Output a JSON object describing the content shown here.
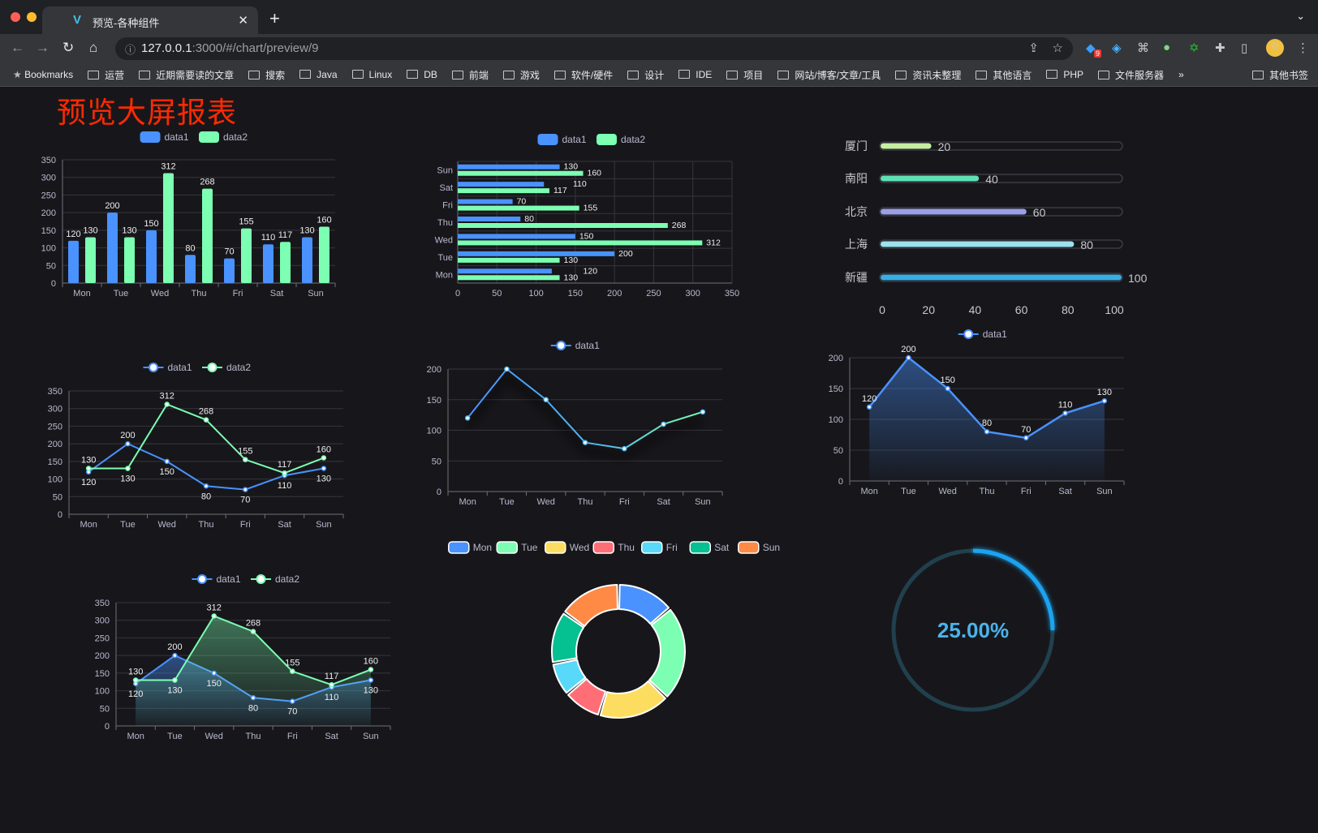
{
  "browser": {
    "tab_title": "预览-各种组件",
    "url_host": "127.0.0.1",
    "url_rest": ":3000/#/chart/preview/9",
    "bookmarks": [
      "Bookmarks",
      "运营",
      "近期需要读的文章",
      "搜索",
      "Java",
      "Linux",
      "DB",
      "前端",
      "游戏",
      "软件/硬件",
      "设计",
      "IDE",
      "项目",
      "网站/博客/文章/工具",
      "资讯未整理",
      "其他语言",
      "PHP",
      "文件服务器",
      "其他书签"
    ],
    "extension_badge": "9"
  },
  "page": {
    "title": "预览大屏报表"
  },
  "colors": {
    "data1": "#4992ff",
    "data2": "#7cffb2",
    "title": "#ff2a00",
    "palette": [
      "#4992ff",
      "#7cffb2",
      "#fddd60",
      "#ff6e76",
      "#58d9f9",
      "#05c091",
      "#ff8a45"
    ],
    "progress": [
      "#c6eea2",
      "#5fe0b4",
      "#9c9fe6",
      "#9ae3ec",
      "#38aee2"
    ],
    "gauge": "#1aa3f0"
  },
  "chart_data": [
    {
      "type": "bar",
      "legend": [
        "data1",
        "data2"
      ],
      "categories": [
        "Mon",
        "Tue",
        "Wed",
        "Thu",
        "Fri",
        "Sat",
        "Sun"
      ],
      "series": [
        {
          "name": "data1",
          "values": [
            120,
            200,
            150,
            80,
            70,
            110,
            130
          ]
        },
        {
          "name": "data2",
          "values": [
            130,
            130,
            312,
            268,
            155,
            117,
            160
          ]
        }
      ],
      "ylim": [
        0,
        350
      ],
      "grid": true,
      "legend_position": "top"
    },
    {
      "type": "bar",
      "orientation": "horizontal",
      "legend": [
        "data1",
        "data2"
      ],
      "categories": [
        "Mon",
        "Tue",
        "Wed",
        "Thu",
        "Fri",
        "Sat",
        "Sun"
      ],
      "series": [
        {
          "name": "data1",
          "values": [
            120,
            200,
            150,
            80,
            70,
            110,
            130
          ]
        },
        {
          "name": "data2",
          "values": [
            130,
            130,
            312,
            268,
            155,
            117,
            160
          ]
        }
      ],
      "xlim": [
        0,
        350
      ],
      "grid": true,
      "legend_position": "top"
    },
    {
      "type": "line",
      "legend": [
        "data1",
        "data2"
      ],
      "categories": [
        "Mon",
        "Tue",
        "Wed",
        "Thu",
        "Fri",
        "Sat",
        "Sun"
      ],
      "series": [
        {
          "name": "data1",
          "values": [
            120,
            200,
            150,
            80,
            70,
            110,
            130
          ]
        },
        {
          "name": "data2",
          "values": [
            130,
            130,
            312,
            268,
            155,
            117,
            160
          ]
        }
      ],
      "ylim": [
        0,
        350
      ],
      "grid": true
    },
    {
      "type": "line",
      "legend": [
        "data1"
      ],
      "categories": [
        "Mon",
        "Tue",
        "Wed",
        "Thu",
        "Fri",
        "Sat",
        "Sun"
      ],
      "series": [
        {
          "name": "data1",
          "values": [
            120,
            200,
            150,
            80,
            70,
            110,
            130
          ]
        }
      ],
      "ylim": [
        0,
        200
      ],
      "grid": true,
      "gradient_line": true
    },
    {
      "type": "area",
      "legend": [
        "data1"
      ],
      "categories": [
        "Mon",
        "Tue",
        "Wed",
        "Thu",
        "Fri",
        "Sat",
        "Sun"
      ],
      "series": [
        {
          "name": "data1",
          "values": [
            120,
            200,
            150,
            80,
            70,
            110,
            130
          ]
        }
      ],
      "ylim": [
        0,
        200
      ],
      "grid": true
    },
    {
      "type": "area",
      "legend": [
        "data1",
        "data2"
      ],
      "categories": [
        "Mon",
        "Tue",
        "Wed",
        "Thu",
        "Fri",
        "Sat",
        "Sun"
      ],
      "series": [
        {
          "name": "data1",
          "values": [
            120,
            200,
            150,
            80,
            70,
            110,
            130
          ]
        },
        {
          "name": "data2",
          "values": [
            130,
            130,
            312,
            268,
            155,
            117,
            160
          ]
        }
      ],
      "ylim": [
        0,
        350
      ],
      "grid": true
    },
    {
      "type": "pie",
      "donut": true,
      "legend": [
        "Mon",
        "Tue",
        "Wed",
        "Thu",
        "Fri",
        "Sat",
        "Sun"
      ],
      "categories": [
        "Mon",
        "Tue",
        "Wed",
        "Thu",
        "Fri",
        "Sat",
        "Sun"
      ],
      "values": [
        120,
        200,
        150,
        80,
        70,
        110,
        130
      ]
    },
    {
      "type": "bar",
      "orientation": "horizontal",
      "style": "progress",
      "categories": [
        "厦门",
        "南阳",
        "北京",
        "上海",
        "新疆"
      ],
      "values": [
        20,
        40,
        60,
        80,
        100
      ],
      "xlim": [
        0,
        100
      ],
      "xticks": [
        "0",
        "20",
        "40",
        "60",
        "80",
        "100"
      ]
    },
    {
      "type": "gauge",
      "value": 25,
      "label": "25.00%"
    }
  ]
}
